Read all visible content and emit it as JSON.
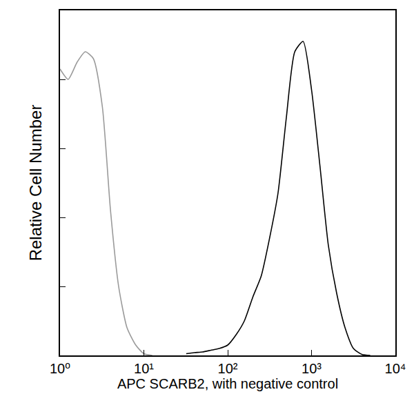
{
  "chart_data": {
    "type": "line",
    "x_label": "APC SCARB2, with negative control",
    "y_label": "Relative Cell Number",
    "log": "x",
    "grid": false,
    "tick_labels": "x",
    "x": [
      1,
      1.25,
      1.6,
      2,
      2.5,
      3.2,
      4,
      5,
      6.3,
      8,
      10,
      12.6,
      16,
      20,
      25,
      32,
      40,
      50,
      63,
      79,
      100,
      126,
      158,
      200,
      251,
      316,
      398,
      501,
      631,
      794,
      1000,
      1259,
      1585,
      1995,
      2512,
      3162,
      3981,
      5012,
      6310,
      7943,
      10000
    ],
    "series": [
      {
        "color": "#9a9a9a",
        "values": [
          83,
          80,
          85,
          88,
          86,
          72,
          42,
          20,
          8,
          3,
          0.5,
          0,
          null,
          null,
          null,
          null,
          null,
          null,
          null,
          null,
          null,
          null,
          null,
          null,
          null,
          null,
          null,
          null,
          null,
          null,
          null,
          null,
          null,
          null,
          null,
          null,
          null,
          null,
          null,
          null,
          null
        ]
      },
      {
        "color": "#000000",
        "values": [
          null,
          null,
          null,
          null,
          null,
          null,
          null,
          null,
          null,
          null,
          null,
          null,
          null,
          null,
          null,
          0.5,
          0.8,
          1,
          1.5,
          2,
          3,
          6,
          10,
          17,
          23,
          34,
          47,
          69,
          88,
          91,
          77,
          55,
          32,
          18,
          8,
          2,
          0.3,
          0,
          null,
          null,
          null
        ]
      }
    ],
    "xlim": [
      1,
      10000
    ],
    "xticks": [
      {
        "value": 1,
        "label": "10⁰"
      },
      {
        "value": 10,
        "label": "10¹"
      },
      {
        "value": 100,
        "label": "10²"
      },
      {
        "value": 1000,
        "label": "10³"
      },
      {
        "value": 10000,
        "label": "10⁴"
      }
    ],
    "ylim": [
      0,
      100
    ],
    "yticks": [
      0,
      20,
      40,
      60,
      80,
      100
    ]
  }
}
